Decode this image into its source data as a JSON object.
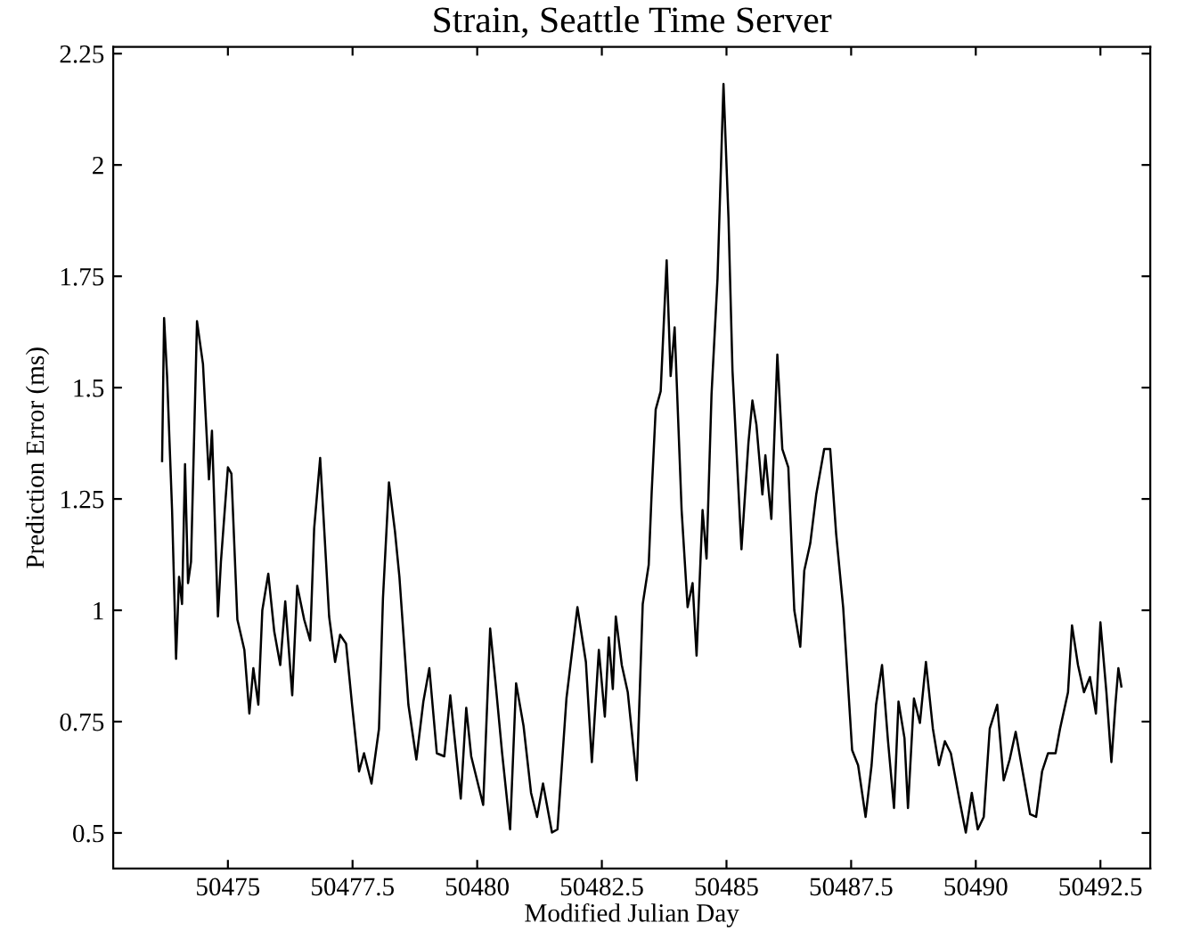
{
  "chart_data": {
    "type": "line",
    "title": "Strain, Seattle Time Server",
    "xlabel": "Modified Julian Day",
    "ylabel": "Prediction Error (ms)",
    "xlim": [
      50472.7,
      50493.5
    ],
    "ylim": [
      0.42,
      2.265
    ],
    "xticks": [
      50475,
      50477.5,
      50480,
      50482.5,
      50485,
      50487.5,
      50490,
      50492.5
    ],
    "yticks": [
      0.5,
      0.75,
      1,
      1.25,
      1.5,
      1.75,
      2,
      2.25
    ],
    "grid": false,
    "marker": "none",
    "line_style": "solid",
    "x": [
      50473.68,
      50473.72,
      50473.78,
      50473.88,
      50473.96,
      50474.02,
      50474.08,
      50474.14,
      50474.2,
      50474.26,
      50474.38,
      50474.5,
      50474.62,
      50474.68,
      50474.8,
      50474.86,
      50475.0,
      50475.07,
      50475.19,
      50475.33,
      50475.43,
      50475.51,
      50475.61,
      50475.69,
      50475.81,
      50475.93,
      50476.05,
      50476.15,
      50476.29,
      50476.39,
      50476.53,
      50476.65,
      50476.73,
      50476.85,
      50476.91,
      50477.03,
      50477.15,
      50477.25,
      50477.37,
      50477.49,
      50477.63,
      50477.73,
      50477.88,
      50478.03,
      50478.11,
      50478.23,
      50478.35,
      50478.44,
      50478.62,
      50478.78,
      50478.92,
      50479.04,
      50479.19,
      50479.34,
      50479.46,
      50479.67,
      50479.78,
      50479.88,
      50480.12,
      50480.26,
      50480.38,
      50480.5,
      50480.66,
      50480.78,
      50480.93,
      50481.08,
      50481.2,
      50481.32,
      50481.5,
      50481.61,
      50481.79,
      50482.01,
      50482.18,
      50482.3,
      50482.44,
      50482.56,
      50482.64,
      50482.72,
      50482.78,
      50482.9,
      50483.02,
      50483.2,
      50483.32,
      50483.44,
      50483.5,
      50483.58,
      50483.68,
      50483.8,
      50483.88,
      50483.96,
      50484.1,
      50484.22,
      50484.32,
      50484.4,
      50484.52,
      50484.6,
      50484.7,
      50484.82,
      50484.94,
      50485.04,
      50485.12,
      50485.3,
      50485.44,
      50485.52,
      50485.6,
      50485.72,
      50485.78,
      50485.9,
      50486.02,
      50486.12,
      50486.24,
      50486.36,
      50486.48,
      50486.56,
      50486.68,
      50486.8,
      50486.96,
      50487.08,
      50487.2,
      50487.34,
      50487.52,
      50487.64,
      50487.79,
      50487.91,
      50488.0,
      50488.12,
      50488.24,
      50488.36,
      50488.45,
      50488.57,
      50488.64,
      50488.76,
      50488.88,
      50489.0,
      50489.14,
      50489.26,
      50489.38,
      50489.5,
      50489.68,
      50489.8,
      50489.92,
      50490.04,
      50490.16,
      50490.28,
      50490.43,
      50490.56,
      50490.68,
      50490.8,
      50490.94,
      50491.09,
      50491.21,
      50491.33,
      50491.45,
      50491.6,
      50491.69,
      50491.85,
      50491.93,
      50492.05,
      50492.17,
      50492.29,
      50492.41,
      50492.5,
      50492.62,
      50492.72,
      50492.8,
      50492.86,
      50492.92
    ],
    "series": [
      {
        "color": "#000000",
        "values": [
          1.335,
          1.656,
          1.526,
          1.225,
          0.891,
          1.075,
          1.014,
          1.328,
          1.061,
          1.109,
          1.649,
          1.553,
          1.294,
          1.403,
          0.986,
          1.109,
          1.321,
          1.307,
          0.979,
          0.911,
          0.768,
          0.87,
          0.788,
          1.0,
          1.082,
          0.952,
          0.877,
          1.02,
          0.809,
          1.055,
          0.979,
          0.932,
          1.184,
          1.342,
          1.225,
          0.986,
          0.884,
          0.945,
          0.925,
          0.788,
          0.638,
          0.679,
          0.611,
          0.734,
          1.027,
          1.287,
          1.178,
          1.075,
          0.788,
          0.665,
          0.795,
          0.87,
          0.679,
          0.672,
          0.809,
          0.577,
          0.781,
          0.672,
          0.563,
          0.959,
          0.823,
          0.679,
          0.508,
          0.836,
          0.74,
          0.59,
          0.536,
          0.611,
          0.501,
          0.508,
          0.802,
          1.007,
          0.884,
          0.659,
          0.911,
          0.761,
          0.939,
          0.823,
          0.986,
          0.877,
          0.816,
          0.618,
          1.014,
          1.102,
          1.266,
          1.451,
          1.492,
          1.786,
          1.526,
          1.635,
          1.225,
          1.007,
          1.061,
          0.898,
          1.225,
          1.116,
          1.485,
          1.745,
          2.182,
          1.881,
          1.539,
          1.137,
          1.376,
          1.471,
          1.417,
          1.26,
          1.348,
          1.205,
          1.574,
          1.362,
          1.321,
          1.0,
          0.918,
          1.089,
          1.15,
          1.26,
          1.362,
          1.362,
          1.171,
          1.007,
          0.686,
          0.652,
          0.536,
          0.652,
          0.788,
          0.877,
          0.706,
          0.556,
          0.795,
          0.713,
          0.556,
          0.802,
          0.747,
          0.884,
          0.734,
          0.652,
          0.706,
          0.679,
          0.57,
          0.501,
          0.59,
          0.508,
          0.536,
          0.734,
          0.788,
          0.618,
          0.665,
          0.727,
          0.638,
          0.542,
          0.536,
          0.638,
          0.679,
          0.679,
          0.734,
          0.816,
          0.966,
          0.877,
          0.816,
          0.85,
          0.768,
          0.973,
          0.816,
          0.659,
          0.788,
          0.87,
          0.829
        ]
      }
    ]
  }
}
